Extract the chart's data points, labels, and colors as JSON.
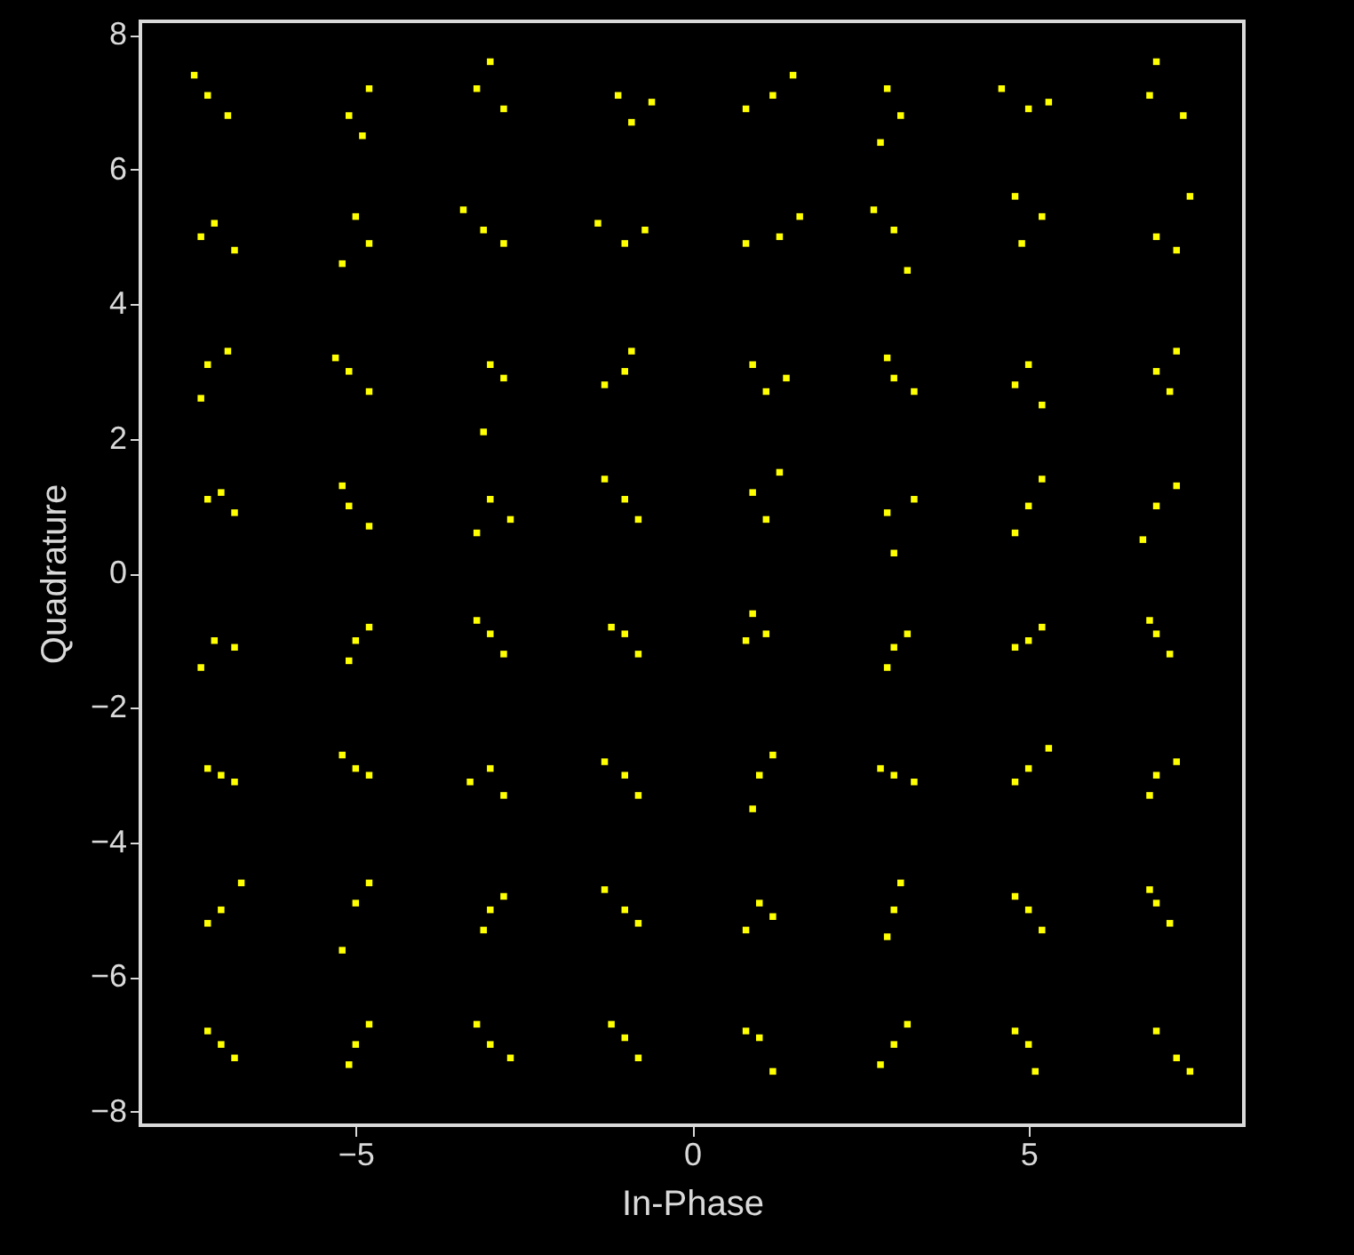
{
  "chart_data": {
    "type": "scatter",
    "xlabel": "In-Phase",
    "ylabel": "Quadrature",
    "xlim": [
      -8.2,
      8.2
    ],
    "ylim": [
      -8.2,
      8.2
    ],
    "xticks": [
      -5,
      0,
      5
    ],
    "yticks": [
      -8,
      -6,
      -4,
      -2,
      0,
      2,
      4,
      6,
      8
    ],
    "grid": false,
    "marker": "square",
    "series": [
      {
        "color": "#ffff00",
        "x": [
          -7.2,
          -6.9,
          -7.4,
          -5.1,
          -4.8,
          -4.9,
          -3.2,
          -2.8,
          -3.0,
          -1.1,
          -0.9,
          -0.6,
          0.8,
          1.2,
          1.5,
          2.9,
          3.1,
          2.8,
          5.0,
          4.6,
          5.3,
          6.8,
          7.3,
          6.9,
          -7.1,
          -6.8,
          -7.3,
          -5.0,
          -4.8,
          -5.2,
          -3.1,
          -2.8,
          -3.4,
          -1.0,
          -0.7,
          -1.4,
          0.8,
          1.3,
          1.6,
          3.0,
          2.7,
          3.2,
          4.9,
          5.2,
          4.8,
          6.9,
          7.2,
          7.4,
          -7.2,
          -6.9,
          -7.3,
          -5.1,
          -4.8,
          -5.3,
          -3.0,
          -2.8,
          -3.1,
          -1.0,
          -0.9,
          -1.3,
          0.9,
          1.1,
          1.4,
          3.0,
          3.3,
          2.9,
          5.0,
          4.8,
          5.2,
          6.9,
          7.2,
          7.1,
          -7.0,
          -6.8,
          -7.2,
          -5.1,
          -4.8,
          -5.2,
          -3.0,
          -2.7,
          -3.2,
          -1.0,
          -0.8,
          -1.3,
          0.9,
          1.1,
          1.3,
          2.9,
          3.3,
          3.0,
          5.0,
          4.8,
          5.2,
          6.9,
          7.2,
          6.7,
          -7.1,
          -6.8,
          -7.3,
          -5.0,
          -4.8,
          -5.1,
          -3.0,
          -2.8,
          -3.2,
          -1.0,
          -0.8,
          -1.2,
          0.8,
          1.1,
          0.9,
          3.0,
          3.2,
          2.9,
          5.0,
          4.8,
          5.2,
          6.9,
          7.1,
          6.8,
          -7.0,
          -6.8,
          -7.2,
          -5.0,
          -4.8,
          -5.2,
          -3.0,
          -2.8,
          -3.3,
          -1.0,
          -0.8,
          -1.3,
          1.0,
          1.2,
          0.9,
          3.0,
          3.3,
          2.8,
          5.0,
          5.3,
          4.8,
          6.9,
          7.2,
          6.8,
          -7.0,
          -6.7,
          -7.2,
          -5.0,
          -4.8,
          -5.2,
          -3.0,
          -2.8,
          -3.1,
          -1.0,
          -0.8,
          -1.3,
          1.0,
          1.2,
          0.8,
          3.0,
          3.1,
          2.9,
          5.0,
          4.8,
          5.2,
          6.9,
          7.1,
          6.8,
          -7.0,
          -6.8,
          -7.2,
          -5.0,
          -4.8,
          -5.1,
          -3.0,
          -2.7,
          -3.2,
          -1.0,
          -0.8,
          -1.2,
          1.0,
          1.2,
          0.8,
          3.0,
          3.2,
          2.8,
          5.0,
          4.8,
          5.1,
          6.9,
          7.2,
          7.4
        ],
        "values": [
          7.1,
          6.8,
          7.4,
          6.8,
          7.2,
          6.5,
          7.2,
          6.9,
          7.6,
          7.1,
          6.7,
          7.0,
          6.9,
          7.1,
          7.4,
          7.2,
          6.8,
          6.4,
          6.9,
          7.2,
          7.0,
          7.1,
          6.8,
          7.6,
          5.2,
          4.8,
          5.0,
          5.3,
          4.9,
          4.6,
          5.1,
          4.9,
          5.4,
          4.9,
          5.1,
          5.2,
          4.9,
          5.0,
          5.3,
          5.1,
          5.4,
          4.5,
          4.9,
          5.3,
          5.6,
          5.0,
          4.8,
          5.6,
          3.1,
          3.3,
          2.6,
          3.0,
          2.7,
          3.2,
          3.1,
          2.9,
          2.1,
          3.0,
          3.3,
          2.8,
          3.1,
          2.7,
          2.9,
          2.9,
          2.7,
          3.2,
          3.1,
          2.8,
          2.5,
          3.0,
          3.3,
          2.7,
          1.2,
          0.9,
          1.1,
          1.0,
          0.7,
          1.3,
          1.1,
          0.8,
          0.6,
          1.1,
          0.8,
          1.4,
          1.2,
          0.8,
          1.5,
          0.9,
          1.1,
          0.3,
          1.0,
          0.6,
          1.4,
          1.0,
          1.3,
          0.5,
          -1.0,
          -1.1,
          -1.4,
          -1.0,
          -0.8,
          -1.3,
          -0.9,
          -1.2,
          -0.7,
          -0.9,
          -1.2,
          -0.8,
          -1.0,
          -0.9,
          -0.6,
          -1.1,
          -0.9,
          -1.4,
          -1.0,
          -1.1,
          -0.8,
          -0.9,
          -1.2,
          -0.7,
          -3.0,
          -3.1,
          -2.9,
          -2.9,
          -3.0,
          -2.7,
          -2.9,
          -3.3,
          -3.1,
          -3.0,
          -3.3,
          -2.8,
          -3.0,
          -2.7,
          -3.5,
          -3.0,
          -3.1,
          -2.9,
          -2.9,
          -2.6,
          -3.1,
          -3.0,
          -2.8,
          -3.3,
          -5.0,
          -4.6,
          -5.2,
          -4.9,
          -4.6,
          -5.6,
          -5.0,
          -4.8,
          -5.3,
          -5.0,
          -5.2,
          -4.7,
          -4.9,
          -5.1,
          -5.3,
          -5.0,
          -4.6,
          -5.4,
          -5.0,
          -4.8,
          -5.3,
          -4.9,
          -5.2,
          -4.7,
          -7.0,
          -7.2,
          -6.8,
          -7.0,
          -6.7,
          -7.3,
          -7.0,
          -7.2,
          -6.7,
          -6.9,
          -7.2,
          -6.7,
          -6.9,
          -7.4,
          -6.8,
          -7.0,
          -6.7,
          -7.3,
          -7.0,
          -6.8,
          -7.4,
          -6.8,
          -7.2,
          -7.4
        ]
      }
    ]
  }
}
